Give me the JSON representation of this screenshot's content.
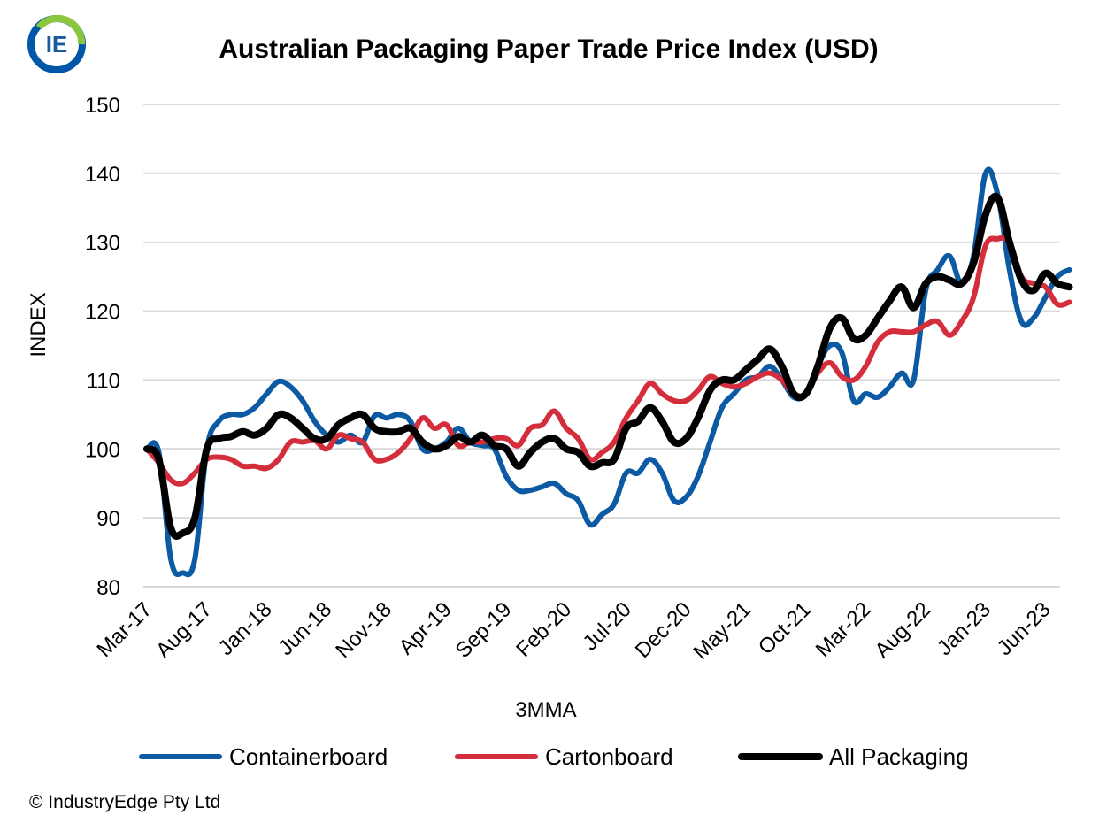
{
  "logo": {
    "text": "IE",
    "ring_colors": [
      "#0057a8",
      "#8cc63f"
    ]
  },
  "footer": {
    "copyright": "© IndustryEdge  Pty Ltd"
  },
  "chart_data": {
    "type": "line",
    "title": "Australian Packaging Paper Trade Price Index (USD)",
    "xlabel": "3MMA",
    "ylabel": "INDEX",
    "ylim": [
      80,
      150
    ],
    "yticks": [
      80,
      90,
      100,
      110,
      120,
      130,
      140,
      150
    ],
    "xlim": [
      "Mar-17",
      "Jul-23"
    ],
    "xtick_labels": [
      "Mar-17",
      "Aug-17",
      "Jan-18",
      "Jun-18",
      "Nov-18",
      "Apr-19",
      "Sep-19",
      "Feb-20",
      "Jul-20",
      "Dec-20",
      "May-21",
      "Oct-21",
      "Mar-22",
      "Aug-22",
      "Jan-23",
      "Jun-23"
    ],
    "grid": "horizontal",
    "legend_position": "bottom",
    "series": [
      {
        "name": "Containerboard",
        "color": "#0b5aa3",
        "points": [
          [
            "Mar-17",
            100
          ],
          [
            "Apr-17",
            99.5
          ],
          [
            "May-17",
            84
          ],
          [
            "Jun-17",
            82
          ],
          [
            "Jul-17",
            84
          ],
          [
            "Aug-17",
            100
          ],
          [
            "Sep-17",
            104
          ],
          [
            "Oct-17",
            105
          ],
          [
            "Nov-17",
            105
          ],
          [
            "Dec-17",
            106
          ],
          [
            "Jan-18",
            108
          ],
          [
            "Feb-18",
            109.8
          ],
          [
            "Mar-18",
            109
          ],
          [
            "Apr-18",
            107
          ],
          [
            "May-18",
            104
          ],
          [
            "Jun-18",
            102
          ],
          [
            "Jul-18",
            101
          ],
          [
            "Aug-18",
            102
          ],
          [
            "Sep-18",
            101
          ],
          [
            "Oct-18",
            104.8
          ],
          [
            "Nov-18",
            104.5
          ],
          [
            "Dec-18",
            105
          ],
          [
            "Jan-19",
            104
          ],
          [
            "Feb-19",
            100
          ],
          [
            "Mar-19",
            100
          ],
          [
            "Apr-19",
            101
          ],
          [
            "May-19",
            103
          ],
          [
            "Jun-19",
            101
          ],
          [
            "Jul-19",
            100.5
          ],
          [
            "Aug-19",
            100
          ],
          [
            "Sep-19",
            96
          ],
          [
            "Oct-19",
            94
          ],
          [
            "Nov-19",
            94
          ],
          [
            "Dec-19",
            94.5
          ],
          [
            "Jan-20",
            95
          ],
          [
            "Feb-20",
            93.5
          ],
          [
            "Mar-20",
            92.5
          ],
          [
            "Apr-20",
            89
          ],
          [
            "May-20",
            90.5
          ],
          [
            "Jun-20",
            92
          ],
          [
            "Jul-20",
            96.5
          ],
          [
            "Aug-20",
            96.5
          ],
          [
            "Sep-20",
            98.5
          ],
          [
            "Oct-20",
            96.5
          ],
          [
            "Nov-20",
            92.5
          ],
          [
            "Dec-20",
            93
          ],
          [
            "Jan-21",
            96
          ],
          [
            "Feb-21",
            101
          ],
          [
            "Mar-21",
            106
          ],
          [
            "Apr-21",
            108
          ],
          [
            "May-21",
            110
          ],
          [
            "Jun-21",
            110.5
          ],
          [
            "Jul-21",
            112
          ],
          [
            "Aug-21",
            110
          ],
          [
            "Sep-21",
            107.5
          ],
          [
            "Oct-21",
            108
          ],
          [
            "Nov-21",
            112
          ],
          [
            "Dec-21",
            115
          ],
          [
            "Jan-22",
            114
          ],
          [
            "Feb-22",
            107
          ],
          [
            "Mar-22",
            108
          ],
          [
            "Apr-22",
            107.5
          ],
          [
            "May-22",
            109
          ],
          [
            "Jun-22",
            111
          ],
          [
            "Jul-22",
            110
          ],
          [
            "Aug-22",
            123
          ],
          [
            "Sep-22",
            126
          ],
          [
            "Oct-22",
            128
          ],
          [
            "Nov-22",
            124
          ],
          [
            "Dec-22",
            128
          ],
          [
            "Jan-23",
            140
          ],
          [
            "Feb-23",
            137
          ],
          [
            "Mar-23",
            126
          ],
          [
            "Apr-23",
            118.5
          ],
          [
            "May-23",
            119
          ],
          [
            "Jun-23",
            122
          ],
          [
            "Jul-23",
            125
          ],
          [
            "Aug-23",
            126
          ]
        ]
      },
      {
        "name": "Cartonboard",
        "color": "#d42e3c",
        "points": [
          [
            "Mar-17",
            100
          ],
          [
            "Apr-17",
            98
          ],
          [
            "May-17",
            95.5
          ],
          [
            "Jun-17",
            95
          ],
          [
            "Jul-17",
            96.5
          ],
          [
            "Aug-17",
            98.5
          ],
          [
            "Sep-17",
            98.8
          ],
          [
            "Oct-17",
            98.5
          ],
          [
            "Nov-17",
            97.5
          ],
          [
            "Dec-17",
            97.5
          ],
          [
            "Jan-18",
            97.2
          ],
          [
            "Feb-18",
            98.5
          ],
          [
            "Mar-18",
            101
          ],
          [
            "Apr-18",
            101
          ],
          [
            "May-18",
            101.2
          ],
          [
            "Jun-18",
            100
          ],
          [
            "Jul-18",
            102
          ],
          [
            "Aug-18",
            101.5
          ],
          [
            "Sep-18",
            101
          ],
          [
            "Oct-18",
            98.5
          ],
          [
            "Nov-18",
            98.5
          ],
          [
            "Dec-18",
            99.5
          ],
          [
            "Jan-19",
            101.5
          ],
          [
            "Feb-19",
            104.5
          ],
          [
            "Mar-19",
            103
          ],
          [
            "Apr-19",
            103.5
          ],
          [
            "May-19",
            100.5
          ],
          [
            "Jun-19",
            101
          ],
          [
            "Jul-19",
            101
          ],
          [
            "Aug-19",
            101.5
          ],
          [
            "Sep-19",
            101.5
          ],
          [
            "Oct-19",
            100.5
          ],
          [
            "Nov-19",
            103
          ],
          [
            "Dec-19",
            103.5
          ],
          [
            "Jan-20",
            105.5
          ],
          [
            "Feb-20",
            103
          ],
          [
            "Mar-20",
            101.5
          ],
          [
            "Apr-20",
            98.5
          ],
          [
            "May-20",
            99.5
          ],
          [
            "Jun-20",
            101
          ],
          [
            "Jul-20",
            104.5
          ],
          [
            "Aug-20",
            107
          ],
          [
            "Sep-20",
            109.5
          ],
          [
            "Oct-20",
            108
          ],
          [
            "Nov-20",
            107
          ],
          [
            "Dec-20",
            107
          ],
          [
            "Jan-21",
            108.5
          ],
          [
            "Feb-21",
            110.5
          ],
          [
            "Mar-21",
            109.5
          ],
          [
            "Apr-21",
            109
          ],
          [
            "May-21",
            109.5
          ],
          [
            "Jun-21",
            110.5
          ],
          [
            "Jul-21",
            111
          ],
          [
            "Aug-21",
            110
          ],
          [
            "Sep-21",
            108
          ],
          [
            "Oct-21",
            108
          ],
          [
            "Nov-21",
            111
          ],
          [
            "Dec-21",
            112.5
          ],
          [
            "Jan-22",
            110.5
          ],
          [
            "Feb-22",
            110
          ],
          [
            "Mar-22",
            112
          ],
          [
            "Apr-22",
            115.5
          ],
          [
            "May-22",
            117
          ],
          [
            "Jun-22",
            117
          ],
          [
            "Jul-22",
            117
          ],
          [
            "Aug-22",
            118
          ],
          [
            "Sep-22",
            118.5
          ],
          [
            "Oct-22",
            116.5
          ],
          [
            "Nov-22",
            118.5
          ],
          [
            "Dec-22",
            122
          ],
          [
            "Jan-23",
            129.5
          ],
          [
            "Feb-23",
            130.5
          ],
          [
            "Mar-23",
            130
          ],
          [
            "Apr-23",
            125
          ],
          [
            "May-23",
            124
          ],
          [
            "Jun-23",
            123.5
          ],
          [
            "Jul-23",
            121
          ],
          [
            "Aug-23",
            121.3
          ]
        ]
      },
      {
        "name": "All Packaging",
        "color": "#000000",
        "points": [
          [
            "Mar-17",
            100
          ],
          [
            "Apr-17",
            98.5
          ],
          [
            "May-17",
            88.5
          ],
          [
            "Jun-17",
            87.8
          ],
          [
            "Jul-17",
            90
          ],
          [
            "Aug-17",
            100
          ],
          [
            "Sep-17",
            101.5
          ],
          [
            "Oct-17",
            101.8
          ],
          [
            "Nov-17",
            102.5
          ],
          [
            "Dec-17",
            102
          ],
          [
            "Jan-18",
            103
          ],
          [
            "Feb-18",
            105
          ],
          [
            "Mar-18",
            104.5
          ],
          [
            "Apr-18",
            103
          ],
          [
            "May-18",
            101.5
          ],
          [
            "Jun-18",
            101.5
          ],
          [
            "Jul-18",
            103.5
          ],
          [
            "Aug-18",
            104.5
          ],
          [
            "Sep-18",
            105
          ],
          [
            "Oct-18",
            103
          ],
          [
            "Nov-18",
            102.5
          ],
          [
            "Dec-18",
            102.5
          ],
          [
            "Jan-19",
            103
          ],
          [
            "Feb-19",
            101
          ],
          [
            "Mar-19",
            100
          ],
          [
            "Apr-19",
            100.5
          ],
          [
            "May-19",
            101.8
          ],
          [
            "Jun-19",
            101
          ],
          [
            "Jul-19",
            102
          ],
          [
            "Aug-19",
            100.5
          ],
          [
            "Sep-19",
            100
          ],
          [
            "Oct-19",
            97.5
          ],
          [
            "Nov-19",
            99.5
          ],
          [
            "Dec-19",
            101
          ],
          [
            "Jan-20",
            101.5
          ],
          [
            "Feb-20",
            100
          ],
          [
            "Mar-20",
            99.5
          ],
          [
            "Apr-20",
            97.5
          ],
          [
            "May-20",
            98
          ],
          [
            "Jun-20",
            98.5
          ],
          [
            "Jul-20",
            103
          ],
          [
            "Aug-20",
            104
          ],
          [
            "Sep-20",
            106
          ],
          [
            "Oct-20",
            104
          ],
          [
            "Nov-20",
            101
          ],
          [
            "Dec-20",
            101.5
          ],
          [
            "Jan-21",
            104.5
          ],
          [
            "Feb-21",
            108.5
          ],
          [
            "Mar-21",
            110
          ],
          [
            "Apr-21",
            110
          ],
          [
            "May-21",
            111.5
          ],
          [
            "Jun-21",
            113
          ],
          [
            "Jul-21",
            114.5
          ],
          [
            "Aug-21",
            112
          ],
          [
            "Sep-21",
            108
          ],
          [
            "Oct-21",
            108
          ],
          [
            "Nov-21",
            112
          ],
          [
            "Dec-21",
            117.5
          ],
          [
            "Jan-22",
            119
          ],
          [
            "Feb-22",
            116
          ],
          [
            "Mar-22",
            116.5
          ],
          [
            "Apr-22",
            119
          ],
          [
            "May-22",
            121.5
          ],
          [
            "Jun-22",
            123.5
          ],
          [
            "Jul-22",
            120.5
          ],
          [
            "Aug-22",
            124
          ],
          [
            "Sep-22",
            125
          ],
          [
            "Oct-22",
            124.5
          ],
          [
            "Nov-22",
            124
          ],
          [
            "Dec-22",
            127
          ],
          [
            "Jan-23",
            134
          ],
          [
            "Feb-23",
            136.5
          ],
          [
            "Mar-23",
            130
          ],
          [
            "Apr-23",
            124.5
          ],
          [
            "May-23",
            123
          ],
          [
            "Jun-23",
            125.5
          ],
          [
            "Jul-23",
            124
          ],
          [
            "Aug-23",
            123.5
          ]
        ]
      }
    ]
  }
}
